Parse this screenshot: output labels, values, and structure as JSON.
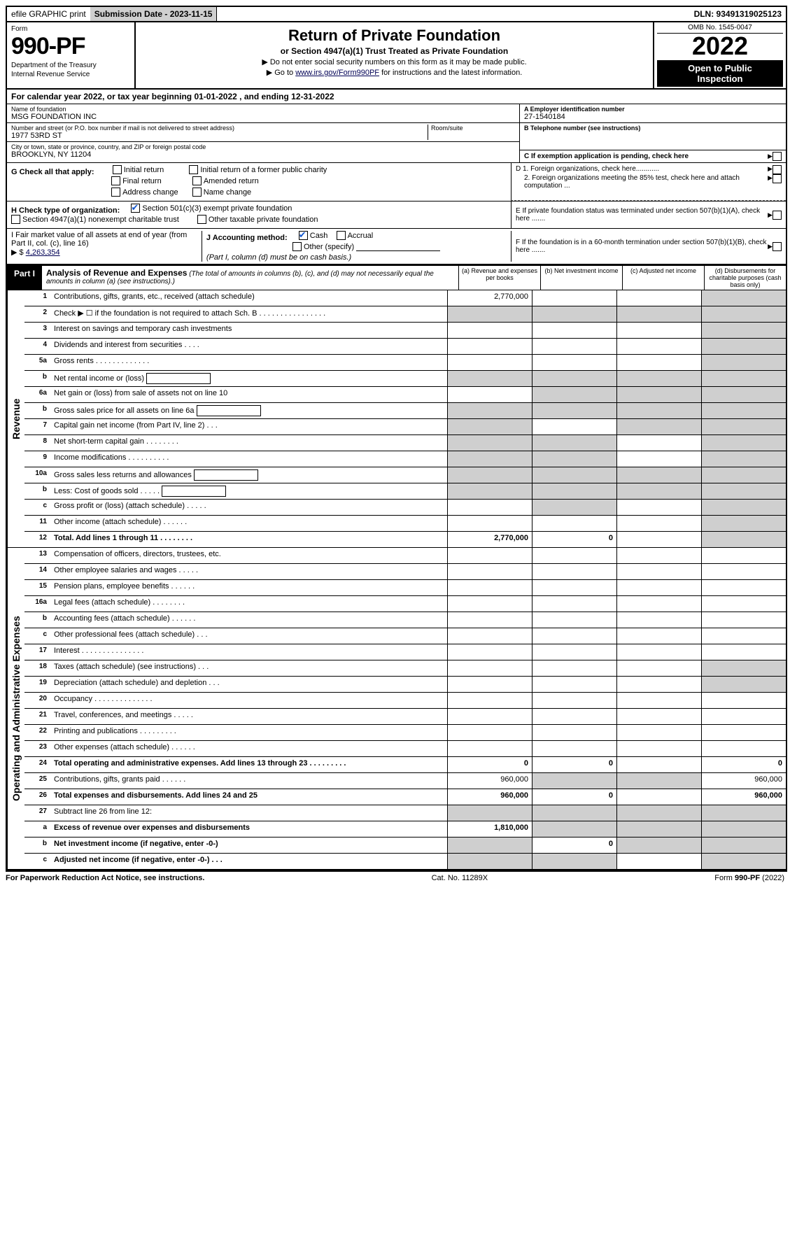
{
  "topbar": {
    "efile": "efile GRAPHIC print",
    "submission_label": "Submission Date - 2023-11-15",
    "dln": "DLN: 93491319025123"
  },
  "header": {
    "form_word": "Form",
    "form_number": "990-PF",
    "dept": "Department of the Treasury",
    "irs": "Internal Revenue Service",
    "title": "Return of Private Foundation",
    "subtitle": "or Section 4947(a)(1) Trust Treated as Private Foundation",
    "note1": "▶ Do not enter social security numbers on this form as it may be made public.",
    "note2_pre": "▶ Go to ",
    "note2_link": "www.irs.gov/Form990PF",
    "note2_post": " for instructions and the latest information.",
    "omb": "OMB No. 1545-0047",
    "year": "2022",
    "open1": "Open to Public",
    "open2": "Inspection"
  },
  "cal_year": "For calendar year 2022, or tax year beginning 01-01-2022 , and ending 12-31-2022",
  "name_block": {
    "name_lbl": "Name of foundation",
    "name_val": "MSG FOUNDATION INC",
    "addr_lbl": "Number and street (or P.O. box number if mail is not delivered to street address)",
    "addr_val": "1977 53RD ST",
    "room_lbl": "Room/suite",
    "city_lbl": "City or town, state or province, country, and ZIP or foreign postal code",
    "city_val": "BROOKLYN, NY  11204"
  },
  "right_block": {
    "a_lbl": "A Employer identification number",
    "a_val": "27-1540184",
    "b_lbl": "B Telephone number (see instructions)",
    "b_val": "",
    "c_lbl": "C If exemption application is pending, check here",
    "d1": "D 1. Foreign organizations, check here............",
    "d2": "2. Foreign organizations meeting the 85% test, check here and attach computation ...",
    "e": "E  If private foundation status was terminated under section 507(b)(1)(A), check here .......",
    "f": "F  If the foundation is in a 60-month termination under section 507(b)(1)(B), check here ......."
  },
  "g_block": {
    "lbl": "G Check all that apply:",
    "opts": [
      "Initial return",
      "Final return",
      "Address change",
      "Initial return of a former public charity",
      "Amended return",
      "Name change"
    ]
  },
  "h_block": {
    "lbl": "H Check type of organization:",
    "opt1": "Section 501(c)(3) exempt private foundation",
    "opt2": "Section 4947(a)(1) nonexempt charitable trust",
    "opt3": "Other taxable private foundation"
  },
  "i_block": {
    "lbl": "I Fair market value of all assets at end of year (from Part II, col. (c), line 16)",
    "amt_lbl": "▶ $",
    "amt_val": "4,263,354"
  },
  "j_block": {
    "lbl": "J Accounting method:",
    "cash": "Cash",
    "accrual": "Accrual",
    "other": "Other (specify)",
    "note": "(Part I, column (d) must be on cash basis.)"
  },
  "part1": {
    "tab": "Part I",
    "title": "Analysis of Revenue and Expenses",
    "sub": " (The total of amounts in columns (b), (c), and (d) may not necessarily equal the amounts in column (a) (see instructions).)",
    "col_a": "(a)  Revenue and expenses per books",
    "col_b": "(b)  Net investment income",
    "col_c": "(c)  Adjusted net income",
    "col_d": "(d)  Disbursements for charitable purposes (cash basis only)"
  },
  "revenue_label": "Revenue",
  "expenses_label": "Operating and Administrative Expenses",
  "rows_rev": [
    {
      "ln": "1",
      "desc": "Contributions, gifts, grants, etc., received (attach schedule)",
      "a": "2,770,000",
      "b": "",
      "c": "",
      "d": "",
      "c_sh": false,
      "d_sh": true
    },
    {
      "ln": "2",
      "desc": "Check ▶ ☐ if the foundation is not required to attach Sch. B   . . . . . . . . . . . . . . . .",
      "a": "",
      "b": "",
      "c": "",
      "d": "",
      "all_sh": true
    },
    {
      "ln": "3",
      "desc": "Interest on savings and temporary cash investments",
      "a": "",
      "b": "",
      "c": "",
      "d": "",
      "d_sh": true
    },
    {
      "ln": "4",
      "desc": "Dividends and interest from securities  . . . .",
      "a": "",
      "b": "",
      "c": "",
      "d": "",
      "d_sh": true
    },
    {
      "ln": "5a",
      "desc": "Gross rents  . . . . . . . . . . . . .",
      "a": "",
      "b": "",
      "c": "",
      "d": "",
      "d_sh": true
    },
    {
      "ln": "b",
      "desc": "Net rental income or (loss)",
      "a": "",
      "b": "",
      "c": "",
      "d": "",
      "input": true,
      "all_sh": true
    },
    {
      "ln": "6a",
      "desc": "Net gain or (loss) from sale of assets not on line 10",
      "a": "",
      "b": "",
      "c": "",
      "d": "",
      "bcd_sh": true
    },
    {
      "ln": "b",
      "desc": "Gross sales price for all assets on line 6a",
      "a": "",
      "b": "",
      "c": "",
      "d": "",
      "input": true,
      "all_sh": true
    },
    {
      "ln": "7",
      "desc": "Capital gain net income (from Part IV, line 2)  . . .",
      "a": "",
      "b": "",
      "c": "",
      "d": "",
      "a_sh": true,
      "cd_sh": true
    },
    {
      "ln": "8",
      "desc": "Net short-term capital gain  . . . . . . . .",
      "a": "",
      "b": "",
      "c": "",
      "d": "",
      "ab_sh": true,
      "d_sh": true
    },
    {
      "ln": "9",
      "desc": "Income modifications  . . . . . . . . . .",
      "a": "",
      "b": "",
      "c": "",
      "d": "",
      "ab_sh": true,
      "d_sh": true
    },
    {
      "ln": "10a",
      "desc": "Gross sales less returns and allowances",
      "a": "",
      "b": "",
      "c": "",
      "d": "",
      "input": true,
      "all_sh": true
    },
    {
      "ln": "b",
      "desc": "Less: Cost of goods sold  . . . . .",
      "a": "",
      "b": "",
      "c": "",
      "d": "",
      "input": true,
      "all_sh": true
    },
    {
      "ln": "c",
      "desc": "Gross profit or (loss) (attach schedule)  . . . . .",
      "a": "",
      "b": "",
      "c": "",
      "d": "",
      "b_sh": true,
      "d_sh": true
    },
    {
      "ln": "11",
      "desc": "Other income (attach schedule)  . . . . . .",
      "a": "",
      "b": "",
      "c": "",
      "d": "",
      "d_sh": true
    },
    {
      "ln": "12",
      "desc": "Total. Add lines 1 through 11  . . . . . . . .",
      "a": "2,770,000",
      "b": "0",
      "c": "",
      "d": "",
      "bold": true,
      "d_sh": true
    }
  ],
  "rows_exp": [
    {
      "ln": "13",
      "desc": "Compensation of officers, directors, trustees, etc.",
      "a": "",
      "b": "",
      "c": "",
      "d": ""
    },
    {
      "ln": "14",
      "desc": "Other employee salaries and wages  . . . . .",
      "a": "",
      "b": "",
      "c": "",
      "d": ""
    },
    {
      "ln": "15",
      "desc": "Pension plans, employee benefits  . . . . . .",
      "a": "",
      "b": "",
      "c": "",
      "d": ""
    },
    {
      "ln": "16a",
      "desc": "Legal fees (attach schedule)  . . . . . . . .",
      "a": "",
      "b": "",
      "c": "",
      "d": ""
    },
    {
      "ln": "b",
      "desc": "Accounting fees (attach schedule)  . . . . . .",
      "a": "",
      "b": "",
      "c": "",
      "d": ""
    },
    {
      "ln": "c",
      "desc": "Other professional fees (attach schedule)  . . .",
      "a": "",
      "b": "",
      "c": "",
      "d": ""
    },
    {
      "ln": "17",
      "desc": "Interest  . . . . . . . . . . . . . . .",
      "a": "",
      "b": "",
      "c": "",
      "d": ""
    },
    {
      "ln": "18",
      "desc": "Taxes (attach schedule) (see instructions)  . . .",
      "a": "",
      "b": "",
      "c": "",
      "d": "",
      "d_sh": true
    },
    {
      "ln": "19",
      "desc": "Depreciation (attach schedule) and depletion  . . .",
      "a": "",
      "b": "",
      "c": "",
      "d": "",
      "d_sh": true
    },
    {
      "ln": "20",
      "desc": "Occupancy  . . . . . . . . . . . . . .",
      "a": "",
      "b": "",
      "c": "",
      "d": ""
    },
    {
      "ln": "21",
      "desc": "Travel, conferences, and meetings  . . . . .",
      "a": "",
      "b": "",
      "c": "",
      "d": ""
    },
    {
      "ln": "22",
      "desc": "Printing and publications  . . . . . . . . .",
      "a": "",
      "b": "",
      "c": "",
      "d": ""
    },
    {
      "ln": "23",
      "desc": "Other expenses (attach schedule)  . . . . . .",
      "a": "",
      "b": "",
      "c": "",
      "d": ""
    },
    {
      "ln": "24",
      "desc": "Total operating and administrative expenses. Add lines 13 through 23  . . . . . . . . .",
      "a": "0",
      "b": "0",
      "c": "",
      "d": "0",
      "bold": true
    },
    {
      "ln": "25",
      "desc": "Contributions, gifts, grants paid  . . . . . .",
      "a": "960,000",
      "b": "",
      "c": "",
      "d": "960,000",
      "bc_sh": true
    },
    {
      "ln": "26",
      "desc": "Total expenses and disbursements. Add lines 24 and 25",
      "a": "960,000",
      "b": "0",
      "c": "",
      "d": "960,000",
      "bold": true
    },
    {
      "ln": "27",
      "desc": "Subtract line 26 from line 12:",
      "a": "",
      "b": "",
      "c": "",
      "d": "",
      "all_sh": true
    },
    {
      "ln": "a",
      "desc": "Excess of revenue over expenses and disbursements",
      "a": "1,810,000",
      "b": "",
      "c": "",
      "d": "",
      "bold": true,
      "bcd_sh": true
    },
    {
      "ln": "b",
      "desc": "Net investment income (if negative, enter -0-)",
      "a": "",
      "b": "0",
      "c": "",
      "d": "",
      "bold": true,
      "a_sh": true,
      "cd_sh": true
    },
    {
      "ln": "c",
      "desc": "Adjusted net income (if negative, enter -0-)  . . .",
      "a": "",
      "b": "",
      "c": "",
      "d": "",
      "bold": true,
      "ab_sh": true,
      "d_sh": true
    }
  ],
  "footer": {
    "left": "For Paperwork Reduction Act Notice, see instructions.",
    "mid": "Cat. No. 11289X",
    "right": "Form 990-PF (2022)"
  },
  "colors": {
    "shade": "#cfcfcf",
    "link": "#0000aa"
  }
}
